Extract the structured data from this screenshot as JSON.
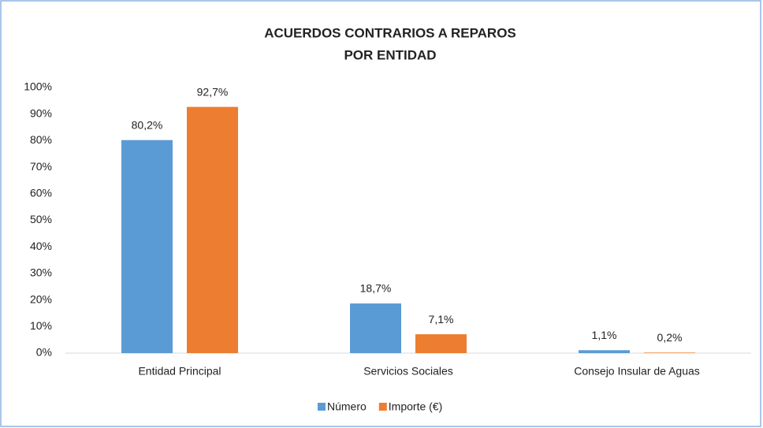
{
  "chart_data": {
    "type": "bar",
    "title": [
      "ACUERDOS CONTRARIOS A REPAROS",
      "POR ENTIDAD"
    ],
    "categories": [
      "Entidad Principal",
      "Servicios Sociales",
      "Consejo Insular de Aguas"
    ],
    "series": [
      {
        "name": "Número",
        "color": "#5b9bd5",
        "values": [
          80.2,
          18.7,
          1.1
        ],
        "value_labels": [
          "80,2%",
          "18,7%",
          "1,1%"
        ]
      },
      {
        "name": "Importe  (€)",
        "color": "#ed7d31",
        "values": [
          92.7,
          7.1,
          0.2
        ],
        "value_labels": [
          "92,7%",
          "7,1%",
          "0,2%"
        ]
      }
    ],
    "ylim": [
      0,
      100
    ],
    "yticks": [
      {
        "value": 0,
        "label": "0%"
      },
      {
        "value": 10,
        "label": "10%"
      },
      {
        "value": 20,
        "label": "20%"
      },
      {
        "value": 30,
        "label": "30%"
      },
      {
        "value": 40,
        "label": "40%"
      },
      {
        "value": 50,
        "label": "50%"
      },
      {
        "value": 60,
        "label": "60%"
      },
      {
        "value": 70,
        "label": "70%"
      },
      {
        "value": 80,
        "label": "80%"
      },
      {
        "value": 90,
        "label": "90%"
      },
      {
        "value": 100,
        "label": "100%"
      }
    ],
    "grid": false,
    "legend": "bottom"
  }
}
